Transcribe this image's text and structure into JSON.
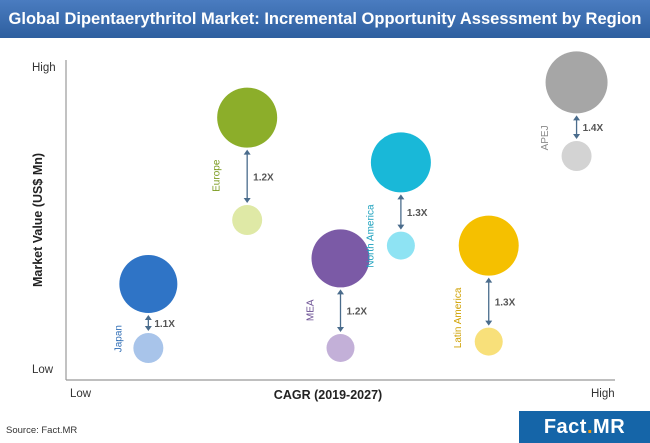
{
  "chart_data": {
    "type": "scatter",
    "title": "Global Dipentaerythritol Market: Incremental Opportunity Assessment by Region",
    "xlabel": "CAGR (2019-2027)",
    "ylabel": "Market Value (US$ Mn)",
    "x_ticks": {
      "low": "Low",
      "high": "High"
    },
    "y_ticks": {
      "low": "Low",
      "high": "High"
    },
    "series": [
      {
        "name": "Japan",
        "x": 0.15,
        "y_current": 0.1,
        "y_future": 0.3,
        "multiplier": "1.1X",
        "color_big": "#2f74c6",
        "color_small": "#a8c4ea",
        "label_color": "#2f6db5",
        "r_big": 29,
        "r_small": 15
      },
      {
        "name": "Europe",
        "x": 0.33,
        "y_current": 0.5,
        "y_future": 0.82,
        "multiplier": "1.2X",
        "color_big": "#8cae2a",
        "color_small": "#dfe9a6",
        "label_color": "#7a9a1e",
        "r_big": 30,
        "r_small": 15
      },
      {
        "name": "MEA",
        "x": 0.5,
        "y_current": 0.1,
        "y_future": 0.38,
        "multiplier": "1.2X",
        "color_big": "#7b5aa6",
        "color_small": "#c3b0d8",
        "label_color": "#6b4f93",
        "r_big": 29,
        "r_small": 14
      },
      {
        "name": "North America",
        "x": 0.61,
        "y_current": 0.42,
        "y_future": 0.68,
        "multiplier": "1.3X",
        "color_big": "#19b8d8",
        "color_small": "#8ee3f3",
        "label_color": "#1aa0bd",
        "r_big": 30,
        "r_small": 14
      },
      {
        "name": "Latin America",
        "x": 0.77,
        "y_current": 0.12,
        "y_future": 0.42,
        "multiplier": "1.3X",
        "color_big": "#f5c000",
        "color_small": "#f8e07a",
        "label_color": "#cfa000",
        "r_big": 30,
        "r_small": 14
      },
      {
        "name": "APEJ",
        "x": 0.93,
        "y_current": 0.7,
        "y_future": 0.93,
        "multiplier": "1.4X",
        "color_big": "#a6a6a6",
        "color_small": "#d3d3d3",
        "label_color": "#888888",
        "r_big": 31,
        "r_small": 15
      }
    ],
    "arrow_color": "#4a6c8c",
    "multiplier_color": "#555555"
  },
  "source": "Source: Fact.MR",
  "logo": {
    "part1": "Fact",
    "dot": ".",
    "part2": "MR"
  }
}
